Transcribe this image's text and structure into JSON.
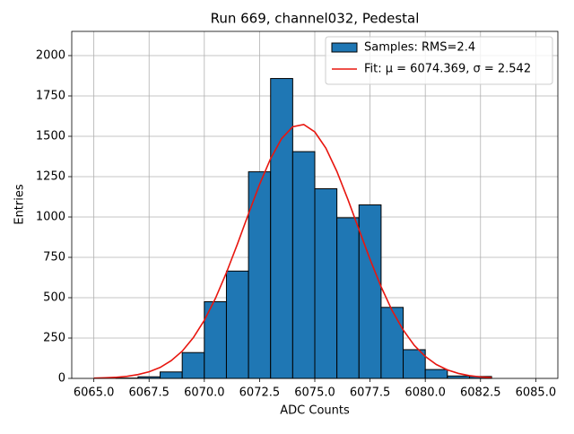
{
  "chart_data": {
    "type": "histogram",
    "title": "Run 669, channel032, Pedestal",
    "xlabel": "ADC Counts",
    "ylabel": "Entries",
    "bins": [
      6065,
      6066,
      6067,
      6068,
      6069,
      6070,
      6071,
      6072,
      6073,
      6074,
      6075,
      6076,
      6077,
      6078,
      6079,
      6080,
      6081,
      6082,
      6083
    ],
    "series": [
      {
        "name": "Samples: RMS=2.4",
        "color": "#1f77b4",
        "edgecolor": "#000000",
        "values": [
          0,
          2,
          10,
          40,
          160,
          475,
          665,
          1280,
          1858,
          1405,
          1175,
          995,
          1075,
          440,
          178,
          55,
          15,
          12
        ]
      },
      {
        "name": "Fit: μ = 6074.369, σ = 2.542",
        "type": "line",
        "color": "#e8160f",
        "x": [
          6065,
          6065.5,
          6066,
          6066.5,
          6067,
          6067.5,
          6068,
          6068.5,
          6069,
          6069.5,
          6070,
          6070.5,
          6071,
          6071.5,
          6072,
          6072.5,
          6073,
          6073.5,
          6074,
          6074.5,
          6075,
          6075.5,
          6076,
          6076.5,
          6077,
          6077.5,
          6078,
          6078.5,
          6079,
          6079.5,
          6080,
          6080.5,
          6081,
          6081.5,
          6082,
          6082.5,
          6083
        ],
        "values": [
          2,
          4,
          7,
          13,
          24,
          41,
          68,
          110,
          169,
          252,
          360,
          495,
          655,
          833,
          1020,
          1202,
          1362,
          1486,
          1559,
          1573,
          1527,
          1427,
          1282,
          1108,
          922,
          738,
          568,
          420,
          300,
          205,
          136,
          86,
          53,
          31,
          17,
          9,
          5
        ]
      }
    ],
    "xlim": [
      6064,
      6086
    ],
    "ylim": [
      0,
      2150
    ],
    "xticks": [
      {
        "value": 6065,
        "label": "6065.0"
      },
      {
        "value": 6067.5,
        "label": "6067.5"
      },
      {
        "value": 6070,
        "label": "6070.0"
      },
      {
        "value": 6072.5,
        "label": "6072.5"
      },
      {
        "value": 6075,
        "label": "6075.0"
      },
      {
        "value": 6077.5,
        "label": "6077.5"
      },
      {
        "value": 6080,
        "label": "6080.0"
      },
      {
        "value": 6082.5,
        "label": "6082.5"
      },
      {
        "value": 6085,
        "label": "6085.0"
      }
    ],
    "yticks": [
      0,
      250,
      500,
      750,
      1000,
      1250,
      1500,
      1750,
      2000
    ],
    "grid": true,
    "legend": "upper right"
  }
}
